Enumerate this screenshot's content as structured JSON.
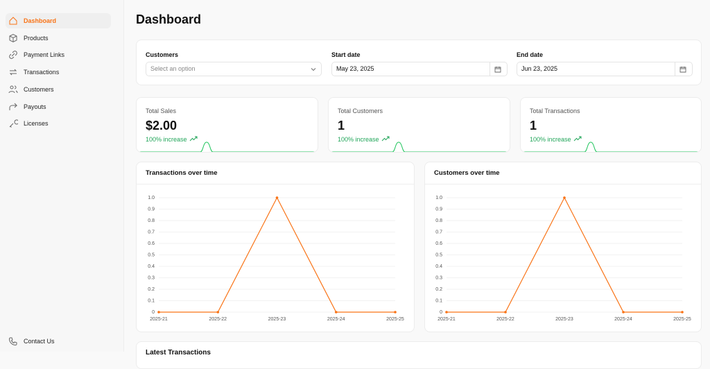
{
  "sidebar": {
    "items": [
      "Dashboard",
      "Products",
      "Payment Links",
      "Transactions",
      "Customers",
      "Payouts",
      "Licenses"
    ],
    "active": 0,
    "footer": "Contact Us"
  },
  "header": {
    "title": "Dashboard"
  },
  "filters": [
    {
      "label": "Customers",
      "placeholder": "Select an option"
    },
    {
      "label": "Start date",
      "value": "May 23, 2025"
    },
    {
      "label": "End date",
      "value": "Jun 23, 2025"
    }
  ],
  "stats": [
    {
      "label": "Total Sales",
      "value": "$2.00",
      "change": "100% increase"
    },
    {
      "label": "Total Customers",
      "value": "1",
      "change": "100% increase"
    },
    {
      "label": "Total Transactions",
      "value": "1",
      "change": "100% increase"
    }
  ],
  "chart_data": [
    {
      "type": "line",
      "title": "Transactions over time",
      "categories": [
        "2025-21",
        "2025-22",
        "2025-23",
        "2025-24",
        "2025-25"
      ],
      "values": [
        0,
        0,
        1,
        0,
        0
      ],
      "color": "#f97316",
      "ylim": [
        0,
        1
      ],
      "yticks": [
        0,
        0.1,
        0.2,
        0.3,
        0.4,
        0.5,
        0.6,
        0.7,
        0.8,
        0.9,
        {
          "value": 1,
          "label": "1.0"
        }
      ],
      "grid": true
    },
    {
      "type": "line",
      "title": "Customers over time",
      "categories": [
        "2025-21",
        "2025-22",
        "2025-23",
        "2025-24",
        "2025-25"
      ],
      "values": [
        0,
        0,
        1,
        0,
        0
      ],
      "color": "#f97316",
      "ylim": [
        0,
        1
      ],
      "yticks": [
        0,
        0.1,
        0.2,
        0.3,
        0.4,
        0.5,
        0.6,
        0.7,
        0.8,
        0.9,
        {
          "value": 1,
          "label": "1.0"
        }
      ],
      "grid": true
    }
  ],
  "table": {
    "title": "Latest Transactions"
  }
}
